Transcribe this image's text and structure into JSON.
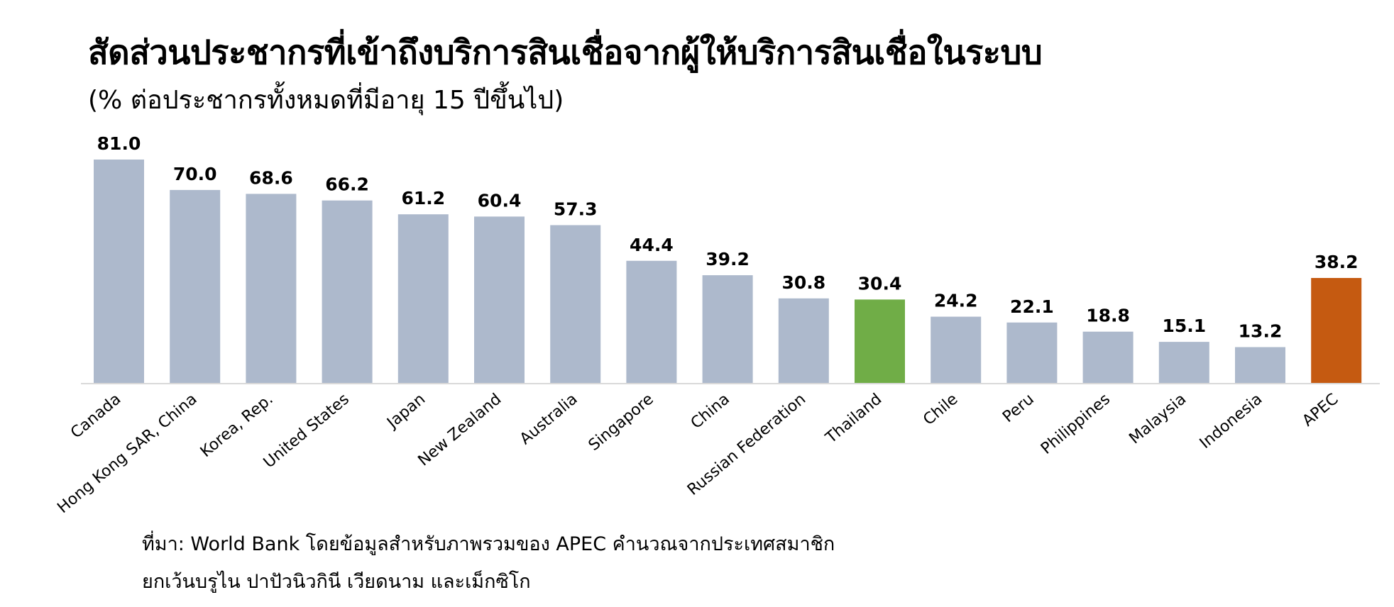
{
  "chart_data": {
    "type": "bar",
    "title": "สัดส่วนประชากรที่เข้าถึงบริการสินเชื่อจากผู้ให้บริการสินเชื่อในระบบ",
    "subtitle": "(% ต่อประชากรทั้งหมดที่มีอายุ 15 ปีขึ้นไป)",
    "categories": [
      "Canada",
      "Hong Kong SAR, China",
      "Korea, Rep.",
      "United States",
      "Japan",
      "New Zealand",
      "Australia",
      "Singapore",
      "China",
      "Russian Federation",
      "Thailand",
      "Chile",
      "Peru",
      "Philippines",
      "Malaysia",
      "Indonesia",
      "APEC"
    ],
    "values": [
      81.0,
      70.0,
      68.6,
      66.2,
      61.2,
      60.4,
      57.3,
      44.4,
      39.2,
      30.8,
      30.4,
      24.2,
      22.1,
      18.8,
      15.1,
      13.2,
      38.2
    ],
    "value_labels": [
      "81.0",
      "70.0",
      "68.6",
      "66.2",
      "61.2",
      "60.4",
      "57.3",
      "44.4",
      "39.2",
      "30.8",
      "30.4",
      "24.2",
      "22.1",
      "18.8",
      "15.1",
      "13.2",
      "38.2"
    ],
    "ylim": [
      0,
      81
    ],
    "grid": false,
    "legend": "none",
    "colors": {
      "default": "#adb9cc",
      "Thailand": "#70ad47",
      "APEC": "#c55a11",
      "axis": "#d9d9d9"
    }
  },
  "source": {
    "line1": "ที่มา: World Bank โดยข้อมูลสำหรับภาพรวมของ APEC คำนวณจากประเทศสมาชิก",
    "line2": "ยกเว้นบรูไน ปาปัวนิวกินี เวียดนาม และเม็กซิโก"
  }
}
